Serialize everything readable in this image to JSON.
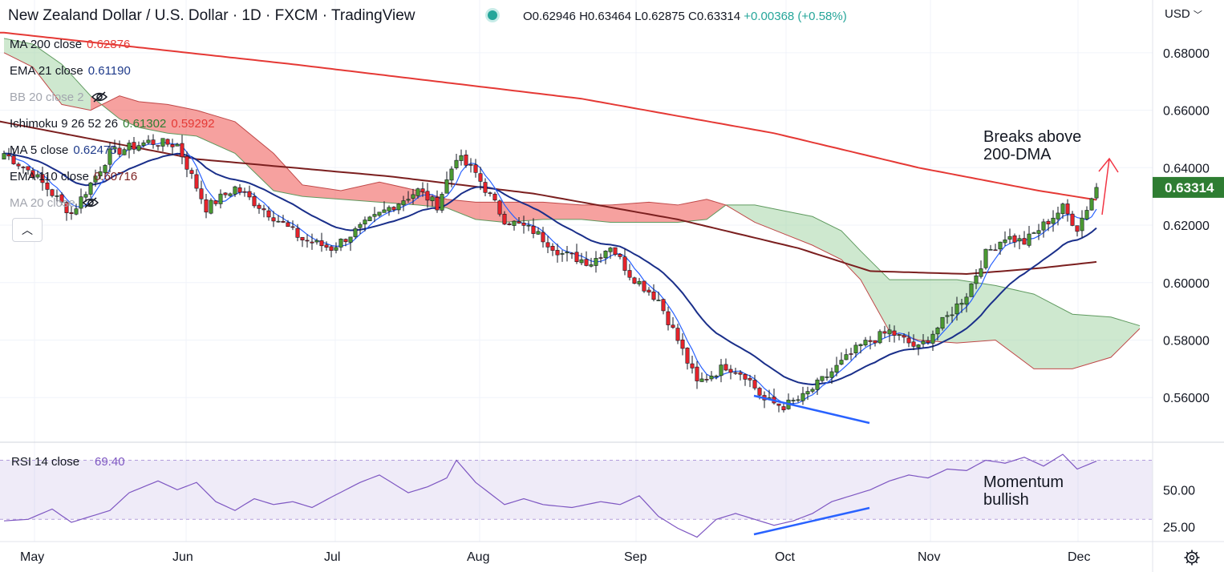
{
  "header": {
    "title": "New Zealand Dollar / U.S. Dollar · 1D · FXCM · TradingView",
    "ohlc": {
      "o": "O0.62946",
      "h": "H0.63464",
      "l": "L0.62875",
      "c": "C0.63314",
      "chg": "+0.00368 (+0.58%)"
    }
  },
  "currency_label": "USD",
  "indicators": [
    {
      "label": "MA 200 close",
      "value": "0.62876",
      "color": "#e53935"
    },
    {
      "label": "EMA 21 close",
      "value": "0.61190",
      "color": "#1e3a8a"
    },
    {
      "label": "BB 20 close 2",
      "value": "",
      "color": "#9598a1",
      "hidden": true
    },
    {
      "label": "Ichimoku 9 26 52 26",
      "value": "0.61302",
      "value2": "0.59292",
      "color": "#131722"
    },
    {
      "label": "MA 5 close",
      "value": "0.62475",
      "color": "#1e3a8a"
    },
    {
      "label": "EMA 110 close",
      "value": "0.60716",
      "color": "#7b1f1f"
    },
    {
      "label": "MA 20 close",
      "value": "",
      "color": "#9598a1",
      "hidden": true
    }
  ],
  "annotations": {
    "breaks": "Breaks above\n200-DMA",
    "momentum": "Momentum\nbullish"
  },
  "rsi": {
    "label": "RSI 14 close",
    "value": "69.40"
  },
  "price_axis": [
    "0.68000",
    "0.66000",
    "0.64000",
    "0.62000",
    "0.60000",
    "0.58000",
    "0.56000"
  ],
  "last_price": "0.63314",
  "rsi_axis": [
    "50.00",
    "25.00"
  ],
  "time_axis": [
    "May",
    "Jun",
    "Jul",
    "Aug",
    "Sep",
    "Oct",
    "Nov",
    "Dec"
  ],
  "icons": [
    "eye-off-icon",
    "chevron-up-icon",
    "gear-icon",
    "chevron-down-icon"
  ],
  "chart_data": {
    "type": "candlestick",
    "ylim": [
      0.545,
      0.69
    ],
    "rsi_ylim": [
      15,
      80
    ],
    "close_anchors": [
      [
        0,
        0.645
      ],
      [
        6,
        0.638
      ],
      [
        14,
        0.624
      ],
      [
        22,
        0.645
      ],
      [
        30,
        0.649
      ],
      [
        36,
        0.648
      ],
      [
        42,
        0.626
      ],
      [
        48,
        0.633
      ],
      [
        56,
        0.623
      ],
      [
        62,
        0.615
      ],
      [
        68,
        0.612
      ],
      [
        74,
        0.619
      ],
      [
        80,
        0.626
      ],
      [
        86,
        0.632
      ],
      [
        90,
        0.627
      ],
      [
        94,
        0.644
      ],
      [
        98,
        0.638
      ],
      [
        104,
        0.622
      ],
      [
        110,
        0.618
      ],
      [
        116,
        0.61
      ],
      [
        122,
        0.607
      ],
      [
        126,
        0.613
      ],
      [
        130,
        0.603
      ],
      [
        136,
        0.594
      ],
      [
        140,
        0.58
      ],
      [
        144,
        0.565
      ],
      [
        150,
        0.571
      ],
      [
        154,
        0.568
      ],
      [
        158,
        0.559
      ],
      [
        162,
        0.557
      ],
      [
        166,
        0.56
      ],
      [
        172,
        0.569
      ],
      [
        178,
        0.578
      ],
      [
        184,
        0.583
      ],
      [
        190,
        0.577
      ],
      [
        196,
        0.588
      ],
      [
        200,
        0.596
      ],
      [
        204,
        0.61
      ],
      [
        208,
        0.616
      ],
      [
        212,
        0.614
      ],
      [
        216,
        0.62
      ],
      [
        220,
        0.626
      ],
      [
        223,
        0.619
      ],
      [
        227,
        0.6331
      ]
    ],
    "ma200_anchors": [
      [
        0,
        0.687
      ],
      [
        60,
        0.676
      ],
      [
        120,
        0.664
      ],
      [
        160,
        0.652
      ],
      [
        190,
        0.64
      ],
      [
        215,
        0.632
      ],
      [
        227,
        0.6288
      ]
    ],
    "ema110_anchors": [
      [
        -10,
        0.659
      ],
      [
        40,
        0.643
      ],
      [
        80,
        0.637
      ],
      [
        110,
        0.631
      ],
      [
        140,
        0.622
      ],
      [
        165,
        0.612
      ],
      [
        180,
        0.604
      ],
      [
        200,
        0.603
      ],
      [
        215,
        0.605
      ],
      [
        227,
        0.6072
      ]
    ],
    "rsi_anchors": [
      [
        0,
        29
      ],
      [
        5,
        30
      ],
      [
        10,
        37
      ],
      [
        14,
        28
      ],
      [
        18,
        32
      ],
      [
        22,
        36
      ],
      [
        26,
        48
      ],
      [
        32,
        56
      ],
      [
        36,
        50
      ],
      [
        40,
        55
      ],
      [
        44,
        42
      ],
      [
        48,
        36
      ],
      [
        52,
        44
      ],
      [
        56,
        40
      ],
      [
        60,
        42
      ],
      [
        64,
        38
      ],
      [
        68,
        45
      ],
      [
        74,
        55
      ],
      [
        78,
        60
      ],
      [
        84,
        48
      ],
      [
        88,
        52
      ],
      [
        92,
        58
      ],
      [
        94,
        70
      ],
      [
        98,
        55
      ],
      [
        104,
        40
      ],
      [
        108,
        44
      ],
      [
        112,
        40
      ],
      [
        118,
        38
      ],
      [
        124,
        42
      ],
      [
        128,
        40
      ],
      [
        132,
        46
      ],
      [
        136,
        32
      ],
      [
        140,
        24
      ],
      [
        144,
        18
      ],
      [
        148,
        30
      ],
      [
        152,
        34
      ],
      [
        156,
        30
      ],
      [
        160,
        26
      ],
      [
        164,
        29
      ],
      [
        168,
        34
      ],
      [
        172,
        42
      ],
      [
        176,
        46
      ],
      [
        180,
        50
      ],
      [
        184,
        56
      ],
      [
        188,
        60
      ],
      [
        192,
        58
      ],
      [
        196,
        64
      ],
      [
        200,
        63
      ],
      [
        204,
        70
      ],
      [
        208,
        68
      ],
      [
        212,
        72
      ],
      [
        216,
        66
      ],
      [
        220,
        74
      ],
      [
        223,
        64
      ],
      [
        227,
        69.4
      ]
    ],
    "kumo_anchors": [
      [
        0,
        0.685,
        0.68
      ],
      [
        6,
        0.683,
        0.675
      ],
      [
        12,
        0.676,
        0.662
      ],
      [
        18,
        0.665,
        0.66
      ],
      [
        24,
        0.657,
        0.665
      ],
      [
        28,
        0.654,
        0.663
      ],
      [
        34,
        0.652,
        0.662
      ],
      [
        40,
        0.651,
        0.66
      ],
      [
        48,
        0.645,
        0.656
      ],
      [
        56,
        0.632,
        0.645
      ],
      [
        62,
        0.63,
        0.634
      ],
      [
        70,
        0.629,
        0.632
      ],
      [
        78,
        0.628,
        0.635
      ],
      [
        86,
        0.627,
        0.632
      ],
      [
        92,
        0.626,
        0.629
      ],
      [
        98,
        0.622,
        0.628
      ],
      [
        104,
        0.621,
        0.628
      ],
      [
        112,
        0.622,
        0.628
      ],
      [
        120,
        0.622,
        0.627
      ],
      [
        126,
        0.621,
        0.627
      ],
      [
        134,
        0.621,
        0.628
      ],
      [
        140,
        0.621,
        0.627
      ],
      [
        146,
        0.622,
        0.629
      ],
      [
        150,
        0.627,
        0.627
      ],
      [
        156,
        0.627,
        0.621
      ],
      [
        162,
        0.625,
        0.617
      ],
      [
        168,
        0.623,
        0.613
      ],
      [
        174,
        0.618,
        0.608
      ],
      [
        178,
        0.611,
        0.601
      ],
      [
        184,
        0.601,
        0.583
      ],
      [
        190,
        0.601,
        0.58
      ],
      [
        198,
        0.601,
        0.579
      ],
      [
        206,
        0.599,
        0.58
      ],
      [
        214,
        0.596,
        0.57
      ],
      [
        222,
        0.589,
        0.57
      ],
      [
        230,
        0.588,
        0.574
      ],
      [
        236,
        0.585,
        0.584
      ]
    ]
  }
}
